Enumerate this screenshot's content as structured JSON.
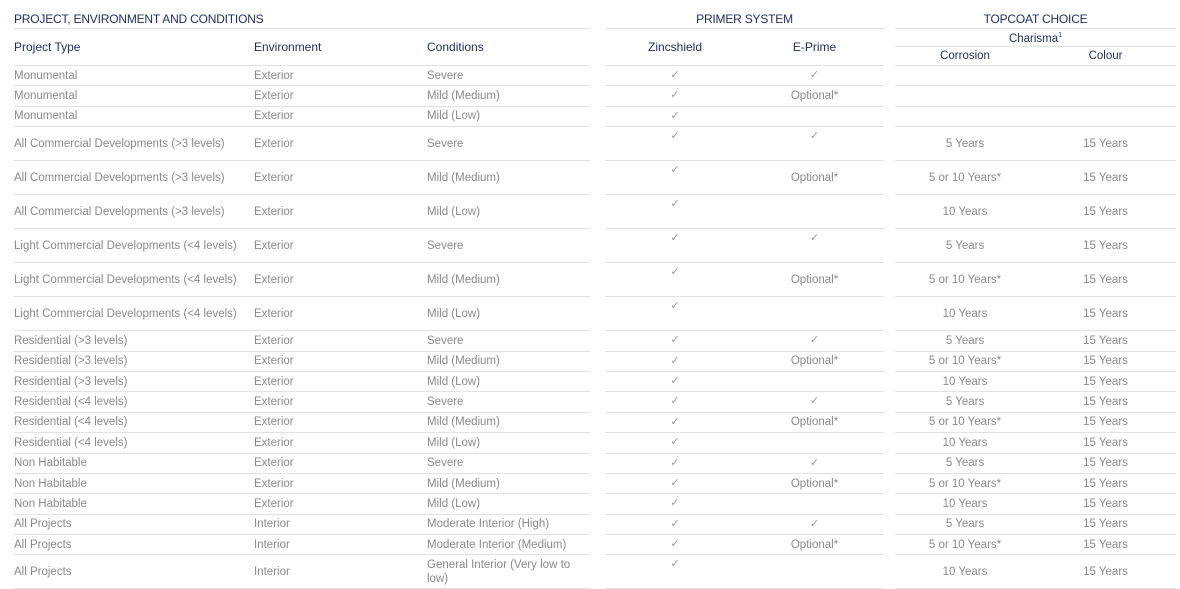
{
  "sections": {
    "project": "PROJECT, ENVIRONMENT AND CONDITIONS",
    "primer": "PRIMER SYSTEM",
    "topcoat": "TOPCOAT CHOICE"
  },
  "headers": {
    "project_type": "Project Type",
    "environment": "Environment",
    "conditions": "Conditions",
    "zincshield": "Zincshield",
    "eprime": "E-Prime",
    "charisma": "Charisma",
    "charisma_sup": "1",
    "corrosion": "Corrosion",
    "colour": "Colour"
  },
  "check_icon": "checkmark-icon",
  "rows": [
    {
      "type": "Monumental",
      "env": "Exterior",
      "cond": "Severe",
      "zinc": true,
      "eprime": "check",
      "corrosion": "",
      "colour": ""
    },
    {
      "type": "Monumental",
      "env": "Exterior",
      "cond": "Mild (Medium)",
      "zinc": true,
      "eprime": "Optional*",
      "corrosion": "",
      "colour": ""
    },
    {
      "type": "Monumental",
      "env": "Exterior",
      "cond": "Mild (Low)",
      "zinc": true,
      "eprime": "",
      "corrosion": "",
      "colour": ""
    },
    {
      "type": "All Commercial Developments (>3 levels)",
      "env": "Exterior",
      "cond": "Severe",
      "zinc": true,
      "eprime": "check",
      "corrosion": "5 Years",
      "colour": "15 Years"
    },
    {
      "type": "All Commercial Developments (>3 levels)",
      "env": "Exterior",
      "cond": "Mild (Medium)",
      "zinc": true,
      "eprime": "Optional*",
      "corrosion": "5 or 10 Years*",
      "colour": "15 Years"
    },
    {
      "type": "All Commercial Developments (>3 levels)",
      "env": "Exterior",
      "cond": "Mild (Low)",
      "zinc": true,
      "eprime": "",
      "corrosion": "10 Years",
      "colour": "15 Years"
    },
    {
      "type": "Light Commercial Developments (<4 levels)",
      "env": "Exterior",
      "cond": "Severe",
      "zinc": true,
      "eprime": "check",
      "corrosion": "5 Years",
      "colour": "15 Years"
    },
    {
      "type": "Light Commercial Developments (<4 levels)",
      "env": "Exterior",
      "cond": "Mild (Medium)",
      "zinc": true,
      "eprime": "Optional*",
      "corrosion": "5 or 10 Years*",
      "colour": "15 Years"
    },
    {
      "type": "Light Commercial Developments (<4 levels)",
      "env": "Exterior",
      "cond": "Mild (Low)",
      "zinc": true,
      "eprime": "",
      "corrosion": "10 Years",
      "colour": "15 Years"
    },
    {
      "type": "Residential (>3 levels)",
      "env": "Exterior",
      "cond": "Severe",
      "zinc": true,
      "eprime": "check",
      "corrosion": "5 Years",
      "colour": "15 Years"
    },
    {
      "type": "Residential (>3 levels)",
      "env": "Exterior",
      "cond": "Mild (Medium)",
      "zinc": true,
      "eprime": "Optional*",
      "corrosion": "5 or 10 Years*",
      "colour": "15 Years"
    },
    {
      "type": "Residential (>3 levels)",
      "env": "Exterior",
      "cond": "Mild (Low)",
      "zinc": true,
      "eprime": "",
      "corrosion": "10 Years",
      "colour": "15 Years"
    },
    {
      "type": "Residential (<4 levels)",
      "env": "Exterior",
      "cond": "Severe",
      "zinc": true,
      "eprime": "check",
      "corrosion": "5 Years",
      "colour": "15 Years"
    },
    {
      "type": "Residential (<4 levels)",
      "env": "Exterior",
      "cond": "Mild (Medium)",
      "zinc": true,
      "eprime": "Optional*",
      "corrosion": "5 or 10 Years*",
      "colour": "15 Years"
    },
    {
      "type": "Residential (<4 levels)",
      "env": "Exterior",
      "cond": "Mild (Low)",
      "zinc": true,
      "eprime": "",
      "corrosion": "10 Years",
      "colour": "15 Years"
    },
    {
      "type": "Non Habitable",
      "env": "Exterior",
      "cond": "Severe",
      "zinc": true,
      "eprime": "check",
      "corrosion": "5 Years",
      "colour": "15 Years"
    },
    {
      "type": "Non Habitable",
      "env": "Exterior",
      "cond": "Mild (Medium)",
      "zinc": true,
      "eprime": "Optional*",
      "corrosion": "5 or 10 Years*",
      "colour": "15 Years"
    },
    {
      "type": "Non Habitable",
      "env": "Exterior",
      "cond": "Mild (Low)",
      "zinc": true,
      "eprime": "",
      "corrosion": "10 Years",
      "colour": "15 Years"
    },
    {
      "type": "All Projects",
      "env": "Interior",
      "cond": "Moderate Interior (High)",
      "zinc": true,
      "eprime": "check",
      "corrosion": "5 Years",
      "colour": "15 Years"
    },
    {
      "type": "All Projects",
      "env": "Interior",
      "cond": "Moderate Interior (Medium)",
      "zinc": true,
      "eprime": "Optional*",
      "corrosion": "5 or 10 Years*",
      "colour": "15 Years"
    },
    {
      "type": "All Projects",
      "env": "Interior",
      "cond": "General Interior (Very low to low)",
      "zinc": true,
      "eprime": "",
      "corrosion": "10 Years",
      "colour": "15 Years"
    }
  ]
}
